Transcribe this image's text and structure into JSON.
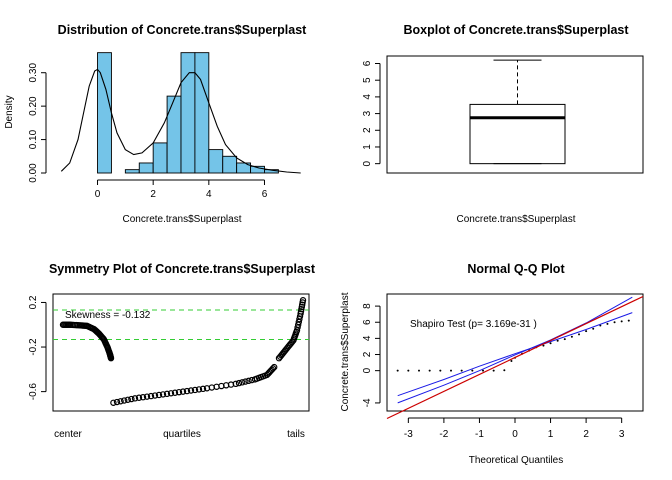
{
  "colors": {
    "hist_fill": "#74C4E8",
    "density_line": "#000000",
    "ref_line": "#33CC33",
    "qq_red": "#CC0000",
    "qq_blue": "#1A1AE6",
    "points": "#000000"
  },
  "chart_data": [
    {
      "type": "bar",
      "title": "Distribution of Concrete.trans$Superplast",
      "xlabel": "Concrete.trans$Superplast",
      "ylabel": "Density",
      "xlim": [
        -1.6,
        7.6
      ],
      "ylim": [
        0,
        0.35
      ],
      "xticks": [
        "0",
        "2",
        "4",
        "6"
      ],
      "yticks": [
        "0.00",
        "0.10",
        "0.20",
        "0.30"
      ],
      "bin_edges": [
        0,
        0.5,
        1,
        1.5,
        2,
        2.5,
        3,
        3.5,
        4,
        4.5,
        5,
        5.5,
        6,
        6.5
      ],
      "values": [
        0.36,
        0.0,
        0.01,
        0.03,
        0.09,
        0.23,
        0.36,
        0.36,
        0.07,
        0.05,
        0.03,
        0.02,
        0.01
      ],
      "density_curve": {
        "x": [
          -1.3,
          -1.0,
          -0.7,
          -0.5,
          -0.3,
          -0.1,
          0.0,
          0.1,
          0.3,
          0.5,
          0.7,
          1.0,
          1.3,
          1.6,
          2.0,
          2.4,
          2.7,
          3.0,
          3.3,
          3.5,
          3.7,
          4.0,
          4.3,
          4.6,
          5.0,
          5.4,
          5.8,
          6.3,
          6.8,
          7.3
        ],
        "y": [
          0.005,
          0.03,
          0.1,
          0.18,
          0.26,
          0.305,
          0.31,
          0.3,
          0.25,
          0.18,
          0.12,
          0.07,
          0.055,
          0.06,
          0.09,
          0.15,
          0.21,
          0.27,
          0.3,
          0.3,
          0.28,
          0.21,
          0.14,
          0.085,
          0.045,
          0.025,
          0.015,
          0.008,
          0.003,
          0.0
        ]
      }
    },
    {
      "type": "boxplot",
      "title": "Boxplot of Concrete.trans$Superplast",
      "xlabel": "Concrete.trans$Superplast",
      "ylim": [
        0,
        6.2
      ],
      "yticks": [
        "0",
        "1",
        "2",
        "3",
        "4",
        "5",
        "6"
      ],
      "min": 0,
      "q1": 0,
      "median": 2.75,
      "q3": 3.55,
      "max": 6.2
    },
    {
      "type": "scatter",
      "title": "Symmetry Plot of Concrete.trans$Superplast",
      "xticklabels": [
        "center",
        "quartiles",
        "tails"
      ],
      "ylim": [
        -0.72,
        0.24
      ],
      "yticks": [
        "-0.6",
        "-0.2",
        "0.2"
      ],
      "annotation": "Skewness = -0.132",
      "ref_lines": [
        0.132,
        -0.132
      ],
      "segments": [
        {
          "x": [
            0.0,
            0.03,
            0.07,
            0.1,
            0.13,
            0.15,
            0.17,
            0.185,
            0.195,
            0.2
          ],
          "y": [
            0.0,
            0.0,
            -0.005,
            -0.01,
            -0.04,
            -0.08,
            -0.13,
            -0.2,
            -0.26,
            -0.3
          ]
        },
        {
          "x": [
            0.21,
            0.3,
            0.4,
            0.5,
            0.6,
            0.72,
            0.8,
            0.85,
            0.88
          ],
          "y": [
            -0.7,
            -0.66,
            -0.63,
            -0.6,
            -0.57,
            -0.53,
            -0.49,
            -0.45,
            -0.38
          ]
        },
        {
          "x": [
            0.9,
            0.93,
            0.96,
            0.975,
            0.99,
            1.0
          ],
          "y": [
            -0.3,
            -0.22,
            -0.14,
            -0.05,
            0.1,
            0.22
          ]
        }
      ]
    },
    {
      "type": "scatter",
      "title": "Normal Q-Q Plot",
      "xlabel": "Theoretical Quantiles",
      "ylabel": "Concrete.trans$Superplast",
      "xlim": [
        -3.6,
        3.6
      ],
      "ylim": [
        -5,
        9.5
      ],
      "xticks": [
        "-3",
        "-2",
        "-1",
        "0",
        "1",
        "2",
        "3"
      ],
      "yticks": [
        "-4",
        "0",
        "2",
        "4",
        "6",
        "8"
      ],
      "annotation": "Shapiro Test (p= 3.169e-31 )",
      "points_x": [
        -3.3,
        -3.0,
        -2.7,
        -2.4,
        -2.1,
        -1.8,
        -1.5,
        -1.2,
        -0.9,
        -0.6,
        -0.3,
        -0.1,
        0.0,
        0.2,
        0.4,
        0.6,
        0.8,
        1.0,
        1.2,
        1.4,
        1.6,
        1.8,
        2.0,
        2.2,
        2.4,
        2.6,
        2.8,
        3.0,
        3.2
      ],
      "points_y": [
        0,
        0,
        0,
        0,
        0,
        0,
        0,
        0,
        0,
        0,
        0.05,
        1.2,
        1.6,
        2.1,
        2.5,
        2.9,
        3.1,
        3.4,
        3.7,
        3.9,
        4.2,
        4.5,
        4.9,
        5.2,
        5.6,
        5.8,
        6.0,
        6.1,
        6.2
      ],
      "ref_line": {
        "intercept": 1.63,
        "slope": 2.1
      },
      "band_upper": {
        "x": [
          -3.3,
          -2.0,
          -1.0,
          0.0,
          1.0,
          2.0,
          3.3
        ],
        "y": [
          -4.0,
          -1.8,
          0.0,
          1.95,
          3.8,
          5.9,
          9.1
        ]
      },
      "band_lower": {
        "x": [
          -3.3,
          -2.0,
          -1.0,
          0.0,
          1.0,
          2.0,
          3.3
        ],
        "y": [
          -3.1,
          -1.1,
          0.55,
          2.1,
          3.6,
          5.1,
          7.2
        ]
      }
    }
  ]
}
